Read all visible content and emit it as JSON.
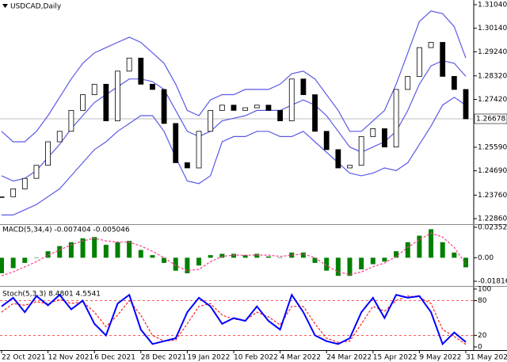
{
  "chart_data": [
    {
      "type": "candlestick",
      "title": "USDCAD,Daily",
      "categories": [
        "22 Oct 2021",
        null,
        null,
        null,
        "12 Nov 2021",
        null,
        null,
        null,
        "6 Dec 2021",
        null,
        null,
        null,
        "28 Dec 2021",
        null,
        null,
        null,
        "19 Jan 2022",
        null,
        null,
        null,
        "10 Feb 2022",
        null,
        null,
        null,
        "4 Mar 2022",
        null,
        null,
        null,
        "24 Mar 2022",
        null,
        null,
        null,
        "15 Apr 2022",
        null,
        null,
        null,
        "9 May 2022",
        null,
        null,
        null,
        "31 May 2022"
      ],
      "close": [
        1.237,
        1.24,
        1.244,
        1.249,
        1.258,
        1.262,
        1.27,
        1.276,
        1.28,
        1.266,
        1.285,
        1.29,
        1.28,
        1.278,
        1.265,
        1.25,
        1.248,
        1.262,
        1.27,
        1.272,
        1.27,
        1.271,
        1.272,
        1.27,
        1.266,
        1.282,
        1.276,
        1.262,
        1.255,
        1.248,
        1.249,
        1.26,
        1.263,
        1.256,
        1.278,
        1.283,
        1.294,
        1.296,
        1.283,
        1.278,
        1.26678
      ],
      "series": [
        {
          "color": "#5a5ae6",
          "values": [
            1.262,
            1.258,
            1.258,
            1.262,
            1.268,
            1.275,
            1.282,
            1.288,
            1.292,
            1.294,
            1.296,
            1.298,
            1.296,
            1.292,
            1.288,
            1.28,
            1.27,
            1.268,
            1.274,
            1.276,
            1.276,
            1.278,
            1.278,
            1.278,
            1.28,
            1.284,
            1.285,
            1.282,
            1.276,
            1.27,
            1.262,
            1.262,
            1.266,
            1.27,
            1.28,
            1.292,
            1.304,
            1.308,
            1.307,
            1.302,
            1.29
          ]
        },
        {
          "color": "#5a5ae6",
          "values": [
            1.245,
            1.243,
            1.244,
            1.247,
            1.252,
            1.257,
            1.263,
            1.268,
            1.273,
            1.276,
            1.279,
            1.282,
            1.282,
            1.281,
            1.278,
            1.27,
            1.262,
            1.26,
            1.262,
            1.266,
            1.267,
            1.268,
            1.27,
            1.27,
            1.27,
            1.272,
            1.274,
            1.272,
            1.268,
            1.262,
            1.256,
            1.254,
            1.256,
            1.258,
            1.262,
            1.27,
            1.28,
            1.287,
            1.289,
            1.288,
            1.283
          ]
        },
        {
          "color": "#5a5ae6",
          "values": [
            1.23,
            1.23,
            1.232,
            1.234,
            1.237,
            1.24,
            1.245,
            1.25,
            1.255,
            1.258,
            1.262,
            1.265,
            1.268,
            1.268,
            1.262,
            1.252,
            1.243,
            1.242,
            1.245,
            1.258,
            1.26,
            1.26,
            1.262,
            1.262,
            1.26,
            1.26,
            1.262,
            1.258,
            1.254,
            1.25,
            1.246,
            1.245,
            1.246,
            1.248,
            1.247,
            1.25,
            1.257,
            1.264,
            1.272,
            1.275,
            1.272
          ]
        }
      ],
      "last": 1.26678,
      "ylim": [
        1.2265,
        1.3122
      ],
      "yticks": [
        {
          "value": 1.3104,
          "label": "1.31040"
        },
        {
          "value": 1.3014,
          "label": "1.30140"
        },
        {
          "value": 1.2924,
          "label": "1.29240"
        },
        {
          "value": 1.2832,
          "label": "1.28320"
        },
        {
          "value": 1.2742,
          "label": "1.27420"
        },
        {
          "value": 1.2559,
          "label": "1.25590"
        },
        {
          "value": 1.2469,
          "label": "1.24690"
        },
        {
          "value": 1.2376,
          "label": "1.23760"
        },
        {
          "value": 1.2286,
          "label": "1.22860"
        }
      ]
    },
    {
      "type": "macd",
      "title": "MACD(5,34,4) -0.007404 -0.005046",
      "series": [
        {
          "color": "#008000",
          "values": [
            -0.012,
            -0.008,
            -0.004,
            0.0,
            0.005,
            0.009,
            0.012,
            0.015,
            0.016,
            0.01,
            0.012,
            0.013,
            0.006,
            0.002,
            -0.004,
            -0.01,
            -0.012,
            -0.006,
            0.002,
            0.003,
            0.003,
            0.002,
            0.003,
            0.001,
            0.0,
            0.004,
            0.004,
            -0.004,
            -0.01,
            -0.014,
            -0.014,
            -0.009,
            -0.005,
            -0.003,
            0.005,
            0.012,
            0.017,
            0.022,
            0.012,
            0.004,
            -0.007404
          ]
        },
        {
          "color": "#ff3c8c",
          "values": [
            -0.014,
            -0.011,
            -0.007,
            -0.003,
            0.002,
            0.006,
            0.01,
            0.013,
            0.015,
            0.013,
            0.012,
            0.012,
            0.009,
            0.005,
            0.0,
            -0.006,
            -0.01,
            -0.009,
            -0.003,
            0.001,
            0.002,
            0.002,
            0.002,
            0.002,
            0.001,
            0.002,
            0.003,
            0.0,
            -0.006,
            -0.011,
            -0.013,
            -0.011,
            -0.007,
            -0.004,
            0.001,
            0.008,
            0.014,
            0.019,
            0.016,
            0.008,
            -0.005046
          ]
        }
      ],
      "ylim": [
        -0.0218,
        0.0253
      ],
      "yticks": [
        0.023523,
        {
          "value": 0,
          "label": "0.00"
        },
        -0.018168
      ]
    },
    {
      "type": "stoch",
      "title": "Stoch(5,3,3) 8.4801 4.5541",
      "series": [
        {
          "color": "#0000ff",
          "values": [
            70,
            85,
            60,
            88,
            72,
            90,
            65,
            80,
            40,
            20,
            75,
            90,
            30,
            5,
            10,
            15,
            60,
            85,
            70,
            40,
            50,
            45,
            70,
            45,
            30,
            90,
            60,
            20,
            10,
            5,
            15,
            60,
            85,
            50,
            90,
            85,
            88,
            60,
            5,
            25,
            8.4801
          ]
        },
        {
          "color": "#ff2020",
          "values": [
            60,
            75,
            72,
            78,
            75,
            82,
            75,
            78,
            60,
            35,
            55,
            80,
            55,
            20,
            10,
            12,
            40,
            70,
            75,
            55,
            48,
            46,
            60,
            52,
            38,
            70,
            70,
            40,
            15,
            8,
            10,
            40,
            70,
            62,
            80,
            88,
            86,
            75,
            30,
            18,
            4.5541
          ]
        }
      ],
      "ylim": [
        -5.5,
        104
      ],
      "yticks": [
        100,
        80,
        20,
        0
      ],
      "levels": [
        80,
        20
      ],
      "level_color": "#ff2020"
    }
  ]
}
